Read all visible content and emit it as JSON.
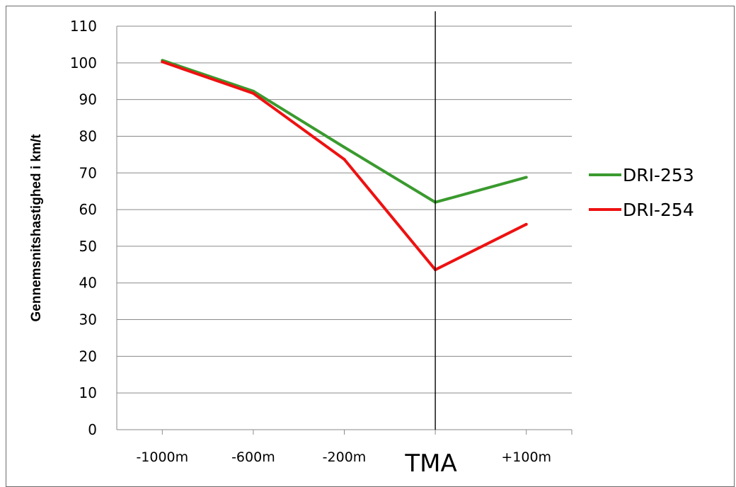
{
  "chart_data": {
    "type": "line",
    "categories": [
      "-1000m",
      "-600m",
      "-200m",
      "TMA",
      "+100m"
    ],
    "ylabel": "Gennemsnitshastighed i km/t",
    "xlabel": "",
    "ylim": [
      0,
      110
    ],
    "yticks": [
      0,
      10,
      20,
      30,
      40,
      50,
      60,
      70,
      80,
      90,
      100,
      110
    ],
    "grid": true,
    "legend_position": "right",
    "marker_category": "TMA",
    "series": [
      {
        "name": "DRI-253",
        "color": "#3a9a2e",
        "values": [
          100.7,
          92.3,
          77,
          62,
          68.8
        ]
      },
      {
        "name": "DRI-254",
        "color": "#ee1111",
        "values": [
          100.3,
          91.7,
          73.7,
          43.6,
          56
        ]
      }
    ]
  }
}
